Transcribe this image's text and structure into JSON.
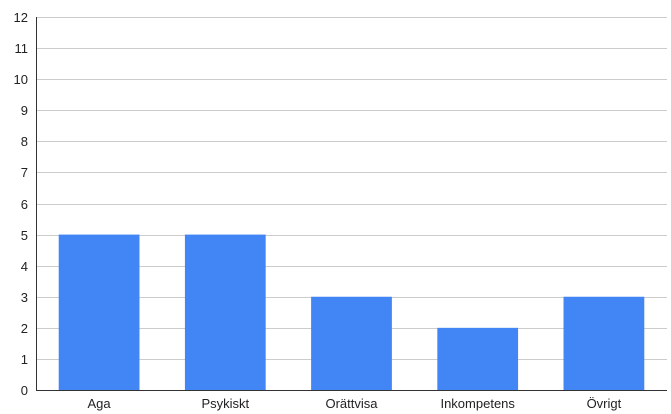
{
  "chart_data": {
    "type": "bar",
    "title": "",
    "xlabel": "",
    "ylabel": "",
    "categories": [
      "Aga",
      "Psykiskt",
      "Orättvisa",
      "Inkompetens",
      "Övrigt"
    ],
    "values": [
      5,
      5,
      3,
      2,
      3
    ],
    "ylim": [
      0,
      12
    ],
    "yticks": [
      0,
      1,
      2,
      3,
      4,
      5,
      6,
      7,
      8,
      9,
      10,
      11,
      12
    ],
    "grid": true,
    "legend": "none",
    "bar_color": "#4285f4"
  }
}
